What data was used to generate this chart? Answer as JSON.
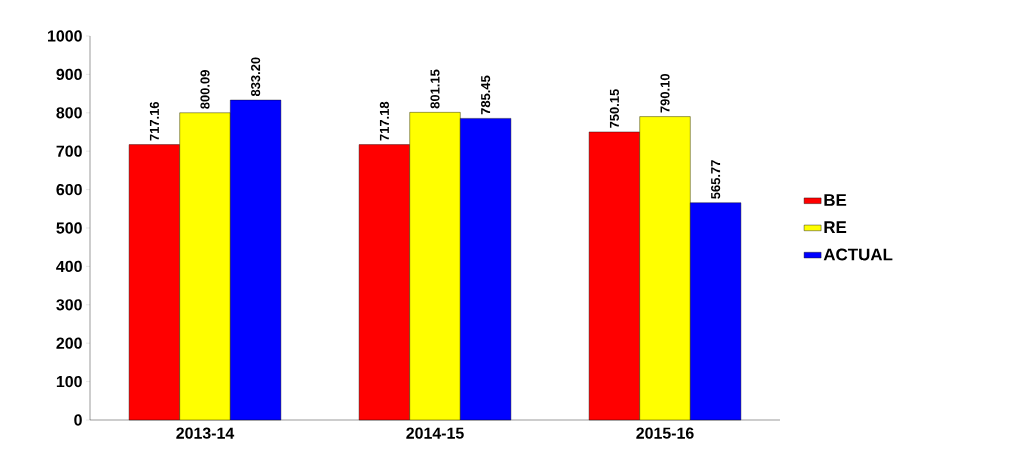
{
  "chart_data": {
    "type": "bar",
    "categories": [
      "2013-14",
      "2014-15",
      "2015-16"
    ],
    "series": [
      {
        "name": "BE",
        "color": "#ff0000",
        "values": [
          717.16,
          717.18,
          750.15
        ],
        "value_labels": [
          "717.16",
          "717.18",
          "750.15"
        ]
      },
      {
        "name": "RE",
        "color": "#ffff00",
        "values": [
          800.09,
          801.15,
          790.1
        ],
        "value_labels": [
          "800.09",
          "801.15",
          "790.10"
        ]
      },
      {
        "name": "ACTUAL",
        "color": "#0000ff",
        "values": [
          833.2,
          785.45,
          565.77
        ],
        "value_labels": [
          "833.20",
          "785.45",
          "565.77"
        ]
      }
    ],
    "ylim": [
      0,
      1000
    ],
    "yticks": [
      0,
      100,
      200,
      300,
      400,
      500,
      600,
      700,
      800,
      900,
      1000
    ],
    "grid": false,
    "legend": "right"
  }
}
